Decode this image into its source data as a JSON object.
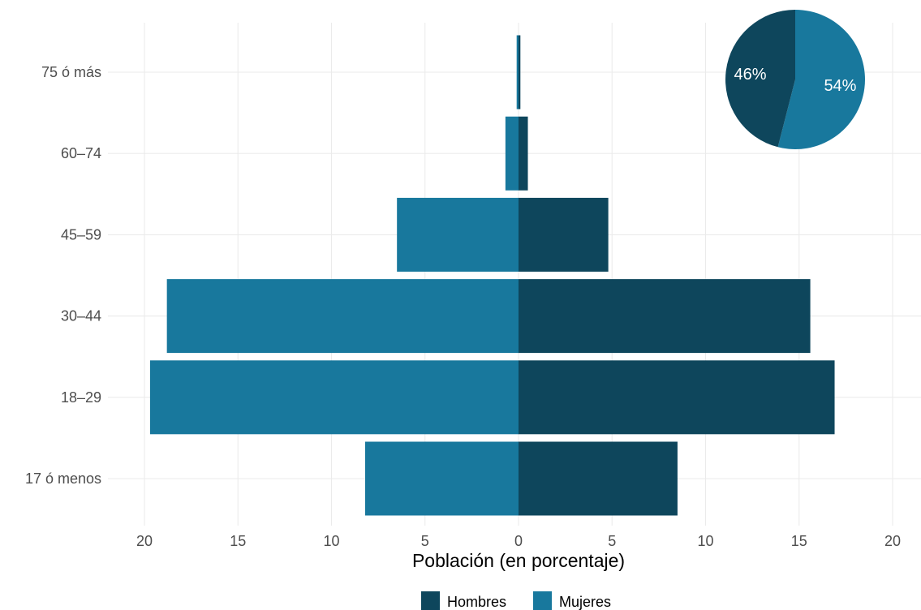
{
  "chart_data": [
    {
      "type": "bar",
      "orientation": "horizontal-diverging",
      "categories": [
        "17 ó menos",
        "18–29",
        "30–44",
        "45–59",
        "60–74",
        "75 ó más"
      ],
      "series": [
        {
          "name": "Hombres",
          "values": [
            8.5,
            16.9,
            15.6,
            4.8,
            0.5,
            0.1
          ]
        },
        {
          "name": "Mujeres",
          "values": [
            8.2,
            19.7,
            18.8,
            6.5,
            0.7,
            0.1
          ]
        }
      ],
      "xlabel": "Población (en porcentaje)",
      "ylabel": "",
      "xlim": [
        -20,
        20
      ],
      "xticks": [
        -20,
        -15,
        -10,
        -5,
        0,
        5,
        10,
        15,
        20
      ],
      "xtick_labels": [
        "20",
        "15",
        "10",
        "5",
        "0",
        "5",
        "10",
        "15",
        "20"
      ],
      "grid": true,
      "legend": {
        "placement": "bottom",
        "entries": [
          "Hombres",
          "Mujeres"
        ]
      },
      "colors": {
        "Hombres": "#0e465c",
        "Mujeres": "#18789d"
      }
    },
    {
      "type": "pie",
      "slices": [
        {
          "name": "Hombres",
          "value": 46,
          "label": "46%"
        },
        {
          "name": "Mujeres",
          "value": 54,
          "label": "54%"
        }
      ],
      "placement": "top-right",
      "colors": {
        "Hombres": "#0e465c",
        "Mujeres": "#18789d"
      }
    }
  ]
}
